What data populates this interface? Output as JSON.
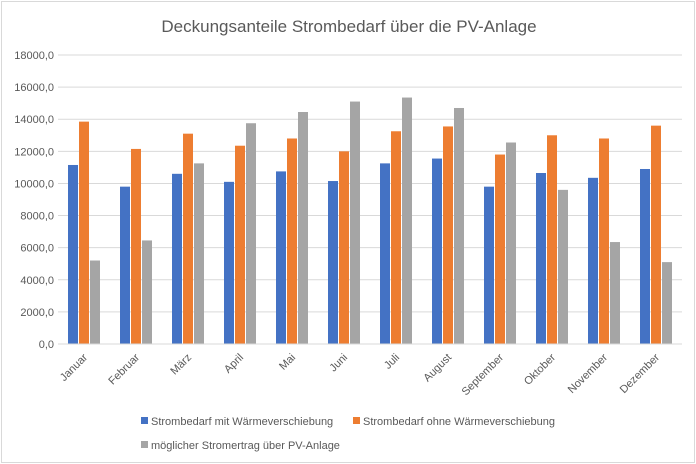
{
  "chart_data": {
    "type": "bar",
    "title": "Deckungsanteile Strombedarf über die PV-Anlage",
    "categories": [
      "Januar",
      "Februar",
      "März",
      "April",
      "Mai",
      "Juni",
      "Juli",
      "August",
      "September",
      "Oktober",
      "November",
      "Dezember"
    ],
    "series": [
      {
        "name": "Strombedarf mit Wärmeverschiebung",
        "color": "#4472c4",
        "values": [
          11150,
          9800,
          10600,
          10100,
          10750,
          10150,
          11250,
          11550,
          9800,
          10650,
          10350,
          10900
        ]
      },
      {
        "name": "Strombedarf ohne Wärmeverschiebung",
        "color": "#ed7d31",
        "values": [
          13850,
          12150,
          13100,
          12350,
          12800,
          12000,
          13250,
          13550,
          11800,
          13000,
          12800,
          13600
        ]
      },
      {
        "name": "möglicher Stromertrag über PV-Anlage",
        "color": "#a5a5a5",
        "values": [
          5200,
          6450,
          11250,
          13750,
          14450,
          15100,
          15350,
          14700,
          12550,
          9600,
          6350,
          5100
        ]
      }
    ],
    "ylim": [
      0,
      18000
    ],
    "yticks": [
      "0,0",
      "2000,0",
      "4000,0",
      "6000,0",
      "8000,0",
      "10000,0",
      "12000,0",
      "14000,0",
      "16000,0",
      "18000,0"
    ],
    "grid": true,
    "legend_position": "bottom"
  }
}
